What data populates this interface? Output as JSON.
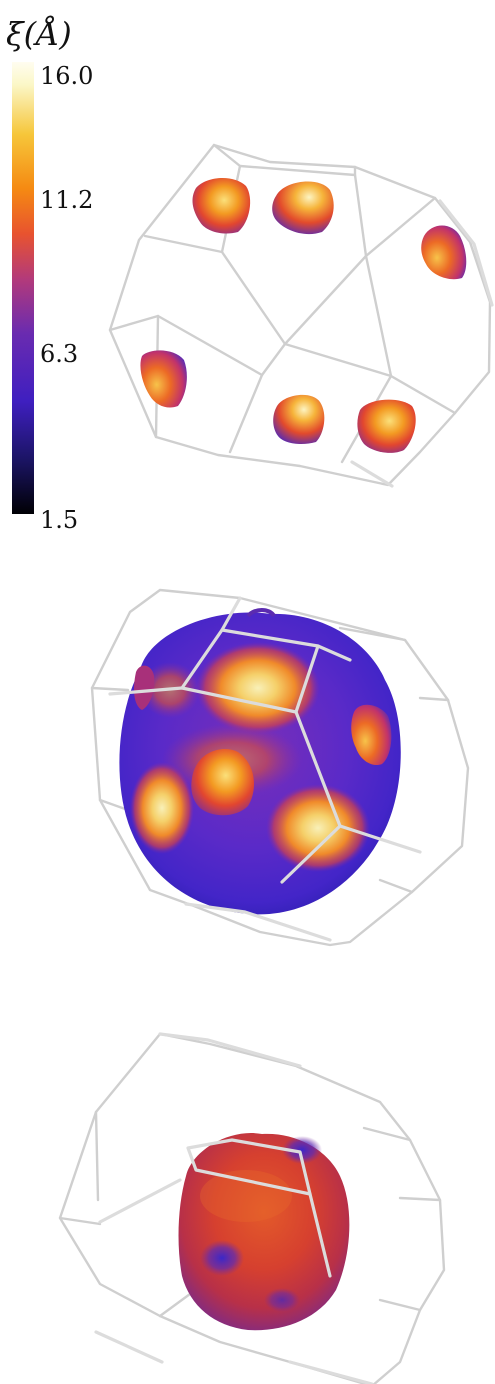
{
  "colorbar": {
    "title": "ξ(Å)",
    "ticks": [
      "16.0",
      "11.2",
      "6.3",
      "1.5"
    ],
    "tick_values": [
      16.0,
      11.2,
      6.3,
      1.5
    ],
    "range": [
      1.5,
      16.0
    ],
    "colormap": "inferno-like",
    "stops": [
      "#000004",
      "#1b1464",
      "#3f1fc0",
      "#6a2bb0",
      "#b33a7a",
      "#e8532f",
      "#f58a12",
      "#f6c63a",
      "#fbf7c7",
      "#fffdf0"
    ]
  },
  "panels": [
    {
      "name": "top",
      "description_colors": [
        "#f2a220",
        "#d83b3b",
        "#6b2ea6"
      ]
    },
    {
      "name": "middle",
      "description_colors": [
        "#f6e59a",
        "#e8652c",
        "#5a2bbf",
        "#3b1fd0"
      ]
    },
    {
      "name": "bottom",
      "description_colors": [
        "#e55525",
        "#b83045",
        "#4a2ac5"
      ]
    }
  ]
}
